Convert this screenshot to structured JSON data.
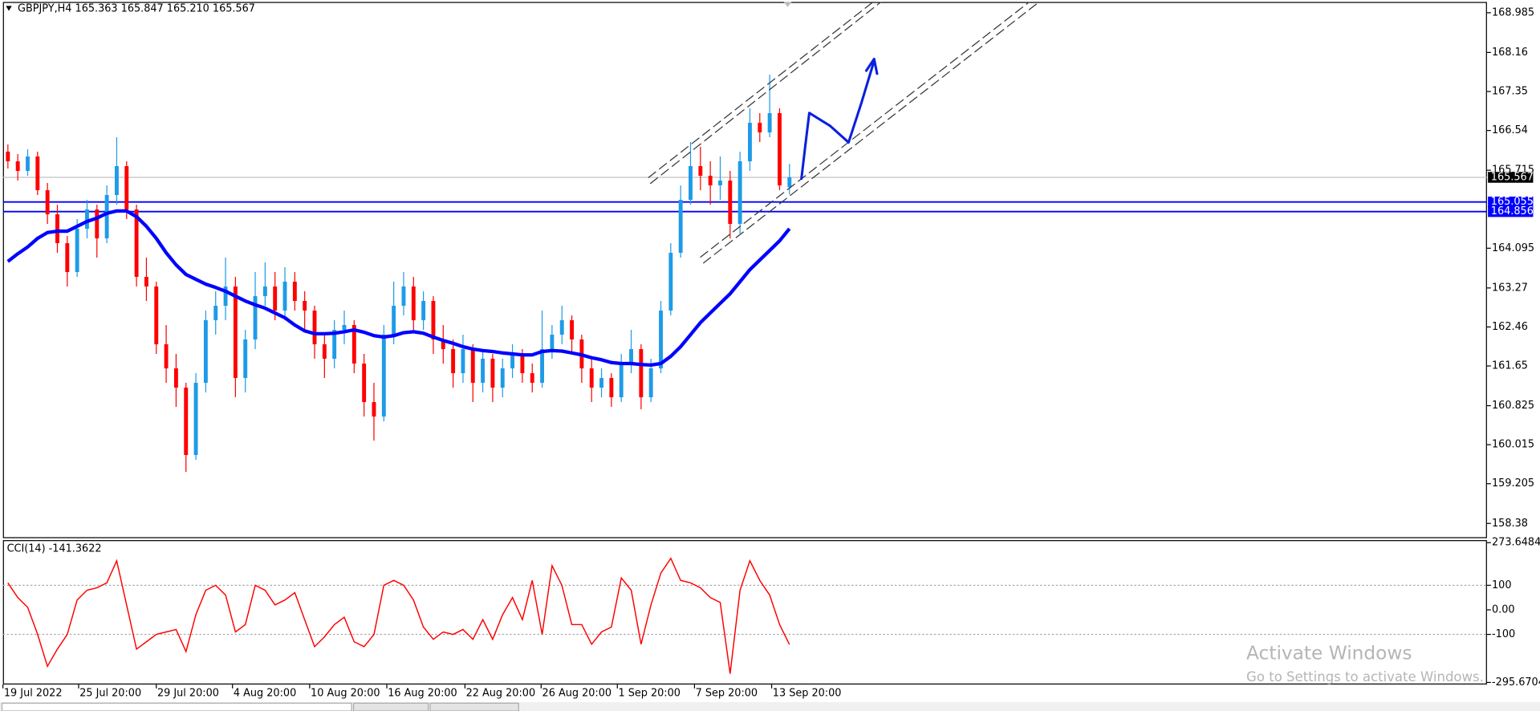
{
  "chart_data": [
    {
      "type": "candlestick",
      "title": "GBPJPY,H4  165.363 165.847 165.210 165.567",
      "up_color": "#1e9be8",
      "down_color": "#ff0000",
      "candles": [
        [
          166.1,
          166.25,
          165.75,
          165.9
        ],
        [
          165.9,
          166.05,
          165.5,
          165.7
        ],
        [
          165.7,
          166.15,
          165.6,
          166.0
        ],
        [
          166.0,
          166.1,
          165.2,
          165.3
        ],
        [
          165.3,
          165.45,
          164.6,
          164.8
        ],
        [
          164.8,
          165.0,
          164.0,
          164.2
        ],
        [
          164.2,
          164.35,
          163.3,
          163.6
        ],
        [
          163.6,
          164.7,
          163.5,
          164.5
        ],
        [
          164.5,
          165.1,
          164.3,
          164.9
        ],
        [
          164.9,
          165.0,
          163.9,
          164.3
        ],
        [
          164.3,
          165.4,
          164.2,
          165.2
        ],
        [
          165.2,
          166.4,
          165.0,
          165.8
        ],
        [
          165.8,
          165.9,
          164.7,
          164.9
        ],
        [
          164.9,
          165.0,
          163.3,
          163.5
        ],
        [
          163.5,
          163.9,
          163.0,
          163.3
        ],
        [
          163.3,
          163.4,
          161.9,
          162.1
        ],
        [
          162.1,
          162.5,
          161.3,
          161.6
        ],
        [
          161.6,
          161.9,
          160.8,
          161.2
        ],
        [
          161.2,
          161.3,
          159.45,
          159.8
        ],
        [
          159.8,
          161.5,
          159.7,
          161.3
        ],
        [
          161.3,
          162.8,
          161.1,
          162.6
        ],
        [
          162.6,
          163.2,
          162.3,
          162.9
        ],
        [
          162.9,
          163.9,
          162.6,
          163.3
        ],
        [
          163.3,
          163.5,
          161.0,
          161.4
        ],
        [
          161.4,
          162.4,
          161.1,
          162.2
        ],
        [
          162.2,
          163.6,
          162.0,
          163.1
        ],
        [
          163.1,
          163.8,
          162.9,
          163.3
        ],
        [
          163.3,
          163.6,
          162.6,
          162.8
        ],
        [
          162.8,
          163.7,
          162.6,
          163.4
        ],
        [
          163.4,
          163.6,
          162.8,
          163.0
        ],
        [
          163.0,
          163.2,
          162.4,
          162.8
        ],
        [
          162.8,
          162.9,
          161.8,
          162.1
        ],
        [
          162.1,
          162.3,
          161.4,
          161.8
        ],
        [
          161.8,
          162.6,
          161.6,
          162.4
        ],
        [
          162.4,
          162.8,
          162.1,
          162.5
        ],
        [
          162.5,
          162.6,
          161.5,
          161.7
        ],
        [
          161.7,
          161.9,
          160.6,
          160.9
        ],
        [
          160.9,
          161.3,
          160.1,
          160.6
        ],
        [
          160.6,
          162.5,
          160.5,
          162.3
        ],
        [
          162.3,
          163.4,
          162.1,
          162.9
        ],
        [
          162.9,
          163.6,
          162.7,
          163.3
        ],
        [
          163.3,
          163.5,
          162.4,
          162.6
        ],
        [
          162.6,
          163.2,
          162.4,
          163.0
        ],
        [
          163.0,
          163.1,
          161.9,
          162.2
        ],
        [
          162.2,
          162.5,
          161.7,
          162.0
        ],
        [
          162.0,
          162.2,
          161.2,
          161.5
        ],
        [
          161.5,
          162.3,
          161.3,
          162.0
        ],
        [
          162.0,
          162.1,
          160.9,
          161.3
        ],
        [
          161.3,
          162.0,
          161.1,
          161.8
        ],
        [
          161.8,
          161.9,
          160.9,
          161.2
        ],
        [
          161.2,
          161.8,
          161.0,
          161.6
        ],
        [
          161.6,
          162.1,
          161.4,
          161.9
        ],
        [
          161.9,
          162.0,
          161.3,
          161.5
        ],
        [
          161.5,
          161.7,
          161.1,
          161.3
        ],
        [
          161.3,
          162.8,
          161.2,
          162.0
        ],
        [
          162.0,
          162.5,
          161.8,
          162.3
        ],
        [
          162.3,
          162.9,
          162.1,
          162.6
        ],
        [
          162.6,
          162.7,
          161.9,
          162.2
        ],
        [
          162.2,
          162.3,
          161.3,
          161.6
        ],
        [
          161.6,
          161.8,
          160.9,
          161.2
        ],
        [
          161.2,
          161.6,
          161.0,
          161.4
        ],
        [
          161.4,
          161.5,
          160.8,
          161.0
        ],
        [
          161.0,
          161.9,
          160.9,
          161.7
        ],
        [
          161.7,
          162.4,
          161.5,
          162.0
        ],
        [
          162.0,
          162.1,
          160.75,
          161.0
        ],
        [
          161.0,
          161.8,
          160.9,
          161.6
        ],
        [
          161.6,
          163.0,
          161.5,
          162.8
        ],
        [
          162.8,
          164.2,
          162.7,
          164.0
        ],
        [
          164.0,
          165.4,
          163.9,
          165.1
        ],
        [
          165.1,
          166.3,
          165.0,
          165.8
        ],
        [
          165.8,
          166.2,
          165.3,
          165.6
        ],
        [
          165.6,
          165.9,
          165.0,
          165.4
        ],
        [
          165.4,
          166.0,
          165.1,
          165.5
        ],
        [
          165.5,
          165.7,
          164.3,
          164.6
        ],
        [
          164.6,
          166.1,
          164.4,
          165.9
        ],
        [
          165.9,
          167.0,
          165.7,
          166.7
        ],
        [
          166.7,
          166.9,
          166.3,
          166.5
        ],
        [
          166.5,
          167.7,
          166.4,
          166.9
        ],
        [
          166.9,
          167.0,
          165.3,
          165.4
        ],
        [
          165.363,
          165.847,
          165.21,
          165.567
        ]
      ],
      "ma": {
        "color": "#0000ff",
        "values": [
          163.82,
          163.98,
          164.12,
          164.3,
          164.42,
          164.45,
          164.45,
          164.55,
          164.65,
          164.72,
          164.82,
          164.87,
          164.87,
          164.75,
          164.55,
          164.3,
          164.0,
          163.75,
          163.55,
          163.45,
          163.35,
          163.28,
          163.2,
          163.1,
          163.0,
          162.92,
          162.85,
          162.75,
          162.65,
          162.5,
          162.38,
          162.32,
          162.32,
          162.33,
          162.36,
          162.4,
          162.35,
          162.28,
          162.25,
          162.28,
          162.34,
          162.36,
          162.33,
          162.25,
          162.18,
          162.12,
          162.05,
          162.0,
          161.97,
          161.95,
          161.92,
          161.9,
          161.88,
          161.88,
          161.95,
          161.97,
          161.96,
          161.92,
          161.88,
          161.82,
          161.78,
          161.72,
          161.7,
          161.7,
          161.68,
          161.67,
          161.7,
          161.85,
          162.05,
          162.3,
          162.55,
          162.75,
          162.95,
          163.15,
          163.4,
          163.65,
          163.85,
          164.05,
          164.25,
          164.5
        ]
      },
      "hlines": [
        {
          "value": 165.055,
          "color": "#0000ff"
        },
        {
          "value": 164.856,
          "color": "#0000ff"
        }
      ],
      "last_price": 165.567,
      "xlim": [
        0,
        150
      ],
      "xticks": [
        {
          "value": 0,
          "label": "19 Jul 2022"
        },
        {
          "value": 7.65,
          "label": "25 Jul 20:00"
        },
        {
          "value": 15.5,
          "label": "29 Jul 20:00"
        },
        {
          "value": 23.2,
          "label": "4 Aug 20:00"
        },
        {
          "value": 31,
          "label": "10 Aug 20:00"
        },
        {
          "value": 38.8,
          "label": "16 Aug 20:00"
        },
        {
          "value": 46.7,
          "label": "22 Aug 20:00"
        },
        {
          "value": 54.4,
          "label": "26 Aug 20:00"
        },
        {
          "value": 62.1,
          "label": "1 Sep 20:00"
        },
        {
          "value": 69.9,
          "label": "7 Sep 20:00"
        },
        {
          "value": 77.7,
          "label": "13 Sep 20:00"
        }
      ],
      "ylim": [
        158.074,
        169.209
      ],
      "yticks": [
        168.985,
        168.16,
        167.35,
        166.54,
        165.715,
        164.095,
        163.27,
        162.46,
        161.65,
        160.825,
        160.015,
        159.205,
        158.38
      ]
    },
    {
      "type": "line",
      "label": "CCI(14) -141.3622",
      "color": "#ff0000",
      "values": [
        110,
        50,
        10,
        -100,
        -230,
        -160,
        -100,
        40,
        80,
        90,
        110,
        200,
        20,
        -160,
        -130,
        -100,
        -90,
        -80,
        -170,
        -20,
        80,
        100,
        60,
        -90,
        -60,
        100,
        80,
        20,
        40,
        70,
        -40,
        -150,
        -110,
        -60,
        -30,
        -130,
        -150,
        -100,
        100,
        120,
        100,
        40,
        -70,
        -120,
        -90,
        -100,
        -80,
        -120,
        -40,
        -120,
        -20,
        50,
        -40,
        120,
        -100,
        180,
        100,
        -60,
        -60,
        -140,
        -90,
        -70,
        130,
        80,
        -140,
        20,
        150,
        210,
        120,
        110,
        90,
        50,
        30,
        -260,
        80,
        200,
        120,
        60,
        -60,
        -141.3622
      ],
      "levels": [
        100,
        -100
      ],
      "ylim": [
        -304,
        280
      ],
      "yticks": [
        273.6484,
        100,
        {
          "value": 0,
          "label": "0.00"
        },
        -100,
        -295.6704
      ]
    }
  ],
  "watermark": {
    "title": "Activate Windows",
    "subtitle": "Go to Settings to activate Windows."
  }
}
